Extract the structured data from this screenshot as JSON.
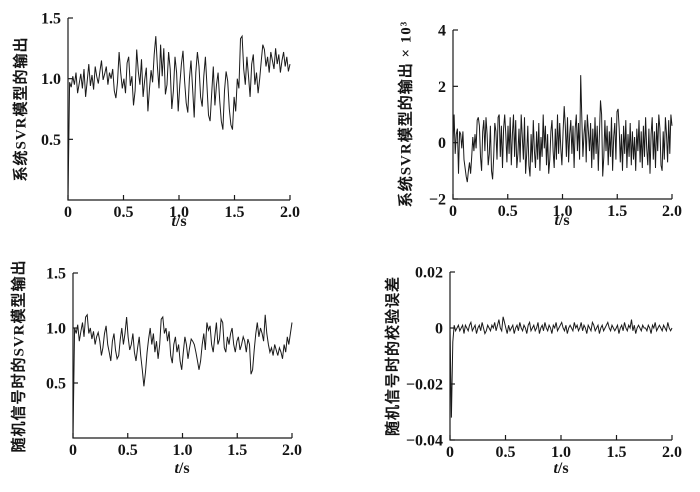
{
  "page": {
    "background": "#ffffff",
    "line_color": "#1a1a1a"
  },
  "chart_data": [
    {
      "id": "top-left",
      "type": "line",
      "title": "",
      "ylabel": "系统SVR模型的输出",
      "xlabel": "t/s",
      "xlabel_var": "t",
      "xlabel_rest": "/s",
      "xlim": [
        0,
        2
      ],
      "ylim": [
        0,
        1.5
      ],
      "xticks": {
        "values": [
          0,
          0.5,
          1.0,
          1.5,
          2.0
        ],
        "labels": [
          "0",
          "0.5",
          "1.0",
          "1.5",
          "2.0"
        ]
      },
      "yticks": {
        "values": [
          0.5,
          1.0,
          1.5
        ],
        "labels": [
          "0.5",
          "1.0",
          "1.5"
        ]
      },
      "grid": false,
      "legend": null,
      "values": [
        0,
        0.97,
        0.93,
        1.02,
        0.95,
        1.05,
        0.88,
        0.96,
        1.04,
        0.92,
        1.08,
        0.85,
        0.98,
        1.12,
        0.94,
        1.03,
        0.91,
        1.1,
        1.02,
        0.96,
        1.06,
        1.15,
        0.99,
        1.04,
        1.1,
        0.95,
        1.05,
        1,
        1.08,
        0.9,
        0.84,
        0.97,
        1.22,
        1.05,
        0.92,
        1,
        0.88,
        1.13,
        1.18,
        0.94,
        1.02,
        0.78,
        0.9,
        1.24,
        1.06,
        0.95,
        1.16,
        0.85,
        0.99,
        1.09,
        0.73,
        0.92,
        1.07,
        0.97,
        1.2,
        1.35,
        1.1,
        0.92,
        1.28,
        1.02,
        1.25,
        0.87,
        0.95,
        1.22,
        1.08,
        0.75,
        0.9,
        1.18,
        1.05,
        0.73,
        0.95,
        1.12,
        1.23,
        0.98,
        0.8,
        0.72,
        1,
        1.15,
        0.92,
        0.68,
        1.05,
        1.22,
        1.1,
        0.85,
        0.77,
        1.02,
        1.18,
        0.95,
        0.7,
        0.65,
        0.88,
        1.1,
        0.78,
        0.95,
        1.05,
        0.82,
        0.65,
        0.58,
        0.9,
        1.06,
        0.98,
        0.75,
        0.62,
        0.58,
        0.85,
        0.73,
        1,
        0.92,
        1.33,
        1.35,
        1.08,
        0.95,
        1.18,
        1.02,
        0.85,
        1.12,
        1.2,
        0.95,
        1.05,
        0.88,
        1,
        1.15,
        1.28,
        1.24,
        1.1,
        1.18,
        1.05,
        1.22,
        1.15,
        1.08,
        1.25,
        1.12,
        1.2,
        1.05,
        1.15,
        1.22,
        1.1,
        1.18,
        1.06,
        1.12
      ]
    },
    {
      "id": "top-right",
      "type": "line",
      "title": "",
      "ylabel": "系统SVR模型的输出 × 10³",
      "xlabel": "t/s",
      "xlabel_var": "t",
      "xlabel_rest": "/s",
      "xlim": [
        0,
        2
      ],
      "ylim": [
        -2,
        4
      ],
      "xticks": {
        "values": [
          0,
          0.5,
          1.0,
          1.5,
          2.0
        ],
        "labels": [
          "0",
          "0.5",
          "1.0",
          "1.5",
          "2.0"
        ]
      },
      "yticks": {
        "values": [
          -2,
          0,
          2,
          4
        ],
        "labels": [
          "−2",
          "0",
          "2",
          "4"
        ]
      },
      "grid": false,
      "legend": null,
      "values": [
        0,
        1,
        -0.4,
        0.3,
        0.5,
        -1.1,
        0.4,
        0.3,
        -0.2,
        0.4,
        -0.6,
        -0.9,
        -1.2,
        -1.4,
        -1,
        -0.7,
        -1.1,
        -0.5,
        0.2,
        -0.3,
        0.3,
        -0.2,
        0.8,
        0.9,
        0.6,
        -0.5,
        -1,
        0.4,
        0.8,
        -0.3,
        0.9,
        0.3,
        -0.8,
        -0.4,
        0.6,
        -1,
        -1.3,
        -0.5,
        0.7,
        0.4,
        -0.6,
        0.9,
        1,
        -0.5,
        0.6,
        -0.9,
        0.5,
        1,
        0.3,
        -0.7,
        0.6,
        -0.4,
        0.9,
        -0.8,
        0.3,
        1,
        -0.5,
        0.8,
        -0.9,
        -0.4,
        0.5,
        -0.7,
        1,
        0.2,
        -0.6,
        0.9,
        -1.1,
        -0.4,
        0.6,
        -0.8,
        -1.2,
        0.3,
        -0.7,
        0.8,
        -0.3,
        -0.9,
        0.4,
        -0.6,
        0.7,
        -1,
        0.2,
        -0.5,
        1,
        -0.2,
        0.6,
        -0.8,
        0.3,
        -1.1,
        -0.6,
        0.4,
        0.8,
        -0.3,
        -0.9,
        0.5,
        -0.6,
        1,
        -0.4,
        0.7,
        -0.2,
        -0.8,
        0.4,
        1.3,
        0.6,
        -0.5,
        0.9,
        -0.7,
        0.3,
        0.8,
        -0.4,
        0.6,
        -0.9,
        0.5,
        1,
        -0.3,
        0.7,
        -0.6,
        2.4,
        0.9,
        -0.5,
        0.3,
        0.8,
        -0.7,
        1,
        0.4,
        -0.3,
        0.7,
        -0.9,
        0.5,
        -0.6,
        0.9,
        -0.4,
        0.6,
        -1,
        0.3,
        1.5,
        1,
        -1.2,
        -0.5,
        0.8,
        -0.3,
        0.6,
        -0.8,
        0.4,
        -0.5,
        0.9,
        -1,
        0.2,
        0.7,
        -0.6,
        1.1,
        1.2,
        0.5,
        -0.7,
        0.3,
        -1,
        0.6,
        -0.4,
        0.8,
        -0.9,
        0.3,
        -0.5,
        0.7,
        -0.8,
        0.4,
        -0.6,
        0.2,
        -1,
        0.5,
        -0.3,
        0.8,
        -0.7,
        0.4,
        -0.9,
        0.6,
        -0.5,
        0.9,
        -0.2,
        -0.8,
        0.5,
        -1.1,
        0.3,
        0.9,
        -0.6,
        0.4,
        -0.9,
        0.7,
        -0.3,
        1,
        0.5,
        -0.8,
        -1,
        0.4,
        -0.6,
        0.9,
        0.3,
        -0.7,
        0.8,
        -0.4,
        1,
        0.6
      ]
    },
    {
      "id": "bottom-left",
      "type": "line",
      "title": "",
      "ylabel": "随机信号时的SVR模型输出",
      "xlabel": "t/s",
      "xlabel_var": "t",
      "xlabel_rest": "/s",
      "xlim": [
        0,
        2
      ],
      "ylim": [
        0,
        1.5
      ],
      "xticks": {
        "values": [
          0,
          0.5,
          1.0,
          1.5,
          2.0
        ],
        "labels": [
          "0",
          "0.5",
          "1.0",
          "1.5",
          "2.0"
        ]
      },
      "yticks": {
        "values": [
          0.5,
          1.0,
          1.5
        ],
        "labels": [
          "0.5",
          "1.0",
          "1.5"
        ]
      },
      "grid": false,
      "legend": null,
      "values": [
        0,
        1,
        0.95,
        1.03,
        0.88,
        0.97,
        1.05,
        0.92,
        1.1,
        1.12,
        0.95,
        1,
        0.9,
        0.97,
        0.85,
        0.92,
        0.96,
        0.88,
        0.75,
        0.82,
        0.95,
        1.02,
        0.85,
        0.78,
        0.7,
        0.88,
        0.95,
        0.8,
        0.72,
        0.75,
        0.9,
        1,
        0.85,
        0.95,
        1.1,
        0.92,
        0.8,
        0.85,
        0.95,
        0.78,
        0.7,
        0.82,
        0.92,
        0.75,
        0.62,
        0.47,
        0.6,
        0.78,
        0.9,
        1,
        0.85,
        0.95,
        0.78,
        0.88,
        0.72,
        0.85,
        1.08,
        1.1,
        0.95,
        1,
        0.88,
        0.97,
        0.75,
        0.68,
        0.85,
        0.92,
        0.78,
        0.85,
        0.7,
        0.62,
        0.78,
        0.92,
        0.85,
        0.72,
        0.82,
        0.9,
        0.88,
        0.85,
        0.78,
        0.7,
        0.62,
        0.7,
        0.85,
        0.95,
        0.8,
        1.05,
        0.98,
        1.02,
        0.85,
        0.78,
        0.92,
        1.05,
        0.85,
        0.9,
        1.08,
        1.05,
        0.82,
        0.78,
        0.92,
        0.85,
        0.95,
        1,
        0.85,
        0.78,
        0.88,
        0.92,
        0.8,
        0.85,
        0.92,
        0.88,
        0.78,
        0.9,
        0.85,
        0.58,
        0.62,
        0.8,
        0.95,
        1.05,
        0.92,
        1,
        0.95,
        0.88,
        1.12,
        0.95,
        0.85,
        0.78,
        0.82,
        0.75,
        0.85,
        0.8,
        0.75,
        0.82,
        0.78,
        0.72,
        0.85,
        0.78,
        0.92,
        0.85,
        0.95,
        1.05
      ]
    },
    {
      "id": "bottom-right",
      "type": "line",
      "title": "",
      "ylabel": "随机信号时的校验误差",
      "xlabel": "t/s",
      "xlabel_var": "t",
      "xlabel_rest": "/s",
      "xlim": [
        0,
        2
      ],
      "ylim": [
        -0.04,
        0.02
      ],
      "xticks": {
        "values": [
          0,
          0.5,
          1.0,
          1.5,
          2.0
        ],
        "labels": [
          "0",
          "0.5",
          "1.0",
          "1.5",
          "2.0"
        ]
      },
      "yticks": {
        "values": [
          -0.04,
          -0.02,
          0,
          0.02
        ],
        "labels": [
          "−0.04",
          "−0.02",
          "0",
          "0.02"
        ]
      },
      "grid": false,
      "legend": null,
      "values": [
        0,
        -0.032,
        -0.005,
        0.001,
        -0.001,
        0,
        0.001,
        -0.001,
        0,
        0.001,
        -0.002,
        0.001,
        0,
        -0.001,
        0.001,
        0.002,
        -0.001,
        0,
        0.001,
        -0.002,
        0,
        0.001,
        -0.001,
        0.002,
        0,
        -0.002,
        -0.001,
        0.001,
        0,
        -0.001,
        0.001,
        0,
        0.002,
        -0.001,
        0.001,
        0.003,
        0,
        -0.001,
        0.004,
        0.002,
        0,
        -0.002,
        0.001,
        -0.001,
        0,
        0.001,
        -0.002,
        0,
        0.001,
        -0.001,
        0.002,
        0,
        -0.001,
        0.001,
        0,
        -0.002,
        0.001,
        0.002,
        -0.001,
        0,
        0.001,
        -0.001,
        0,
        0.002,
        -0.002,
        0,
        0.001,
        -0.001,
        0.002,
        0,
        -0.001,
        0.001,
        0,
        -0.002,
        0.001,
        0,
        0.002,
        -0.001,
        0,
        0.001,
        0.002,
        0,
        -0.001,
        0.001,
        -0.002,
        0,
        0.001,
        0,
        -0.001,
        0.002,
        0,
        0.001,
        -0.001,
        0,
        0.002,
        -0.001,
        0.001,
        0,
        -0.002,
        0.001,
        0,
        -0.001,
        0.002,
        0.001,
        -0.001,
        0,
        0.001,
        -0.002,
        0,
        0.001,
        -0.001,
        0,
        0.001,
        0.002,
        0,
        -0.001,
        0.001,
        0,
        -0.001,
        0,
        0.001,
        -0.002,
        0,
        0.001,
        -0.001,
        0.002,
        0,
        -0.001,
        0.001,
        0,
        0.003,
        -0.001,
        0.001,
        -0.002,
        0,
        0.001,
        0,
        -0.001,
        0.001,
        0,
        0,
        -0.001,
        0.001,
        0,
        -0.002,
        0.001,
        0,
        0.002,
        -0.001,
        0,
        0.001,
        0,
        -0.001,
        0.001,
        0,
        -0.001,
        0.002,
        0,
        -0.001,
        0
      ]
    }
  ]
}
